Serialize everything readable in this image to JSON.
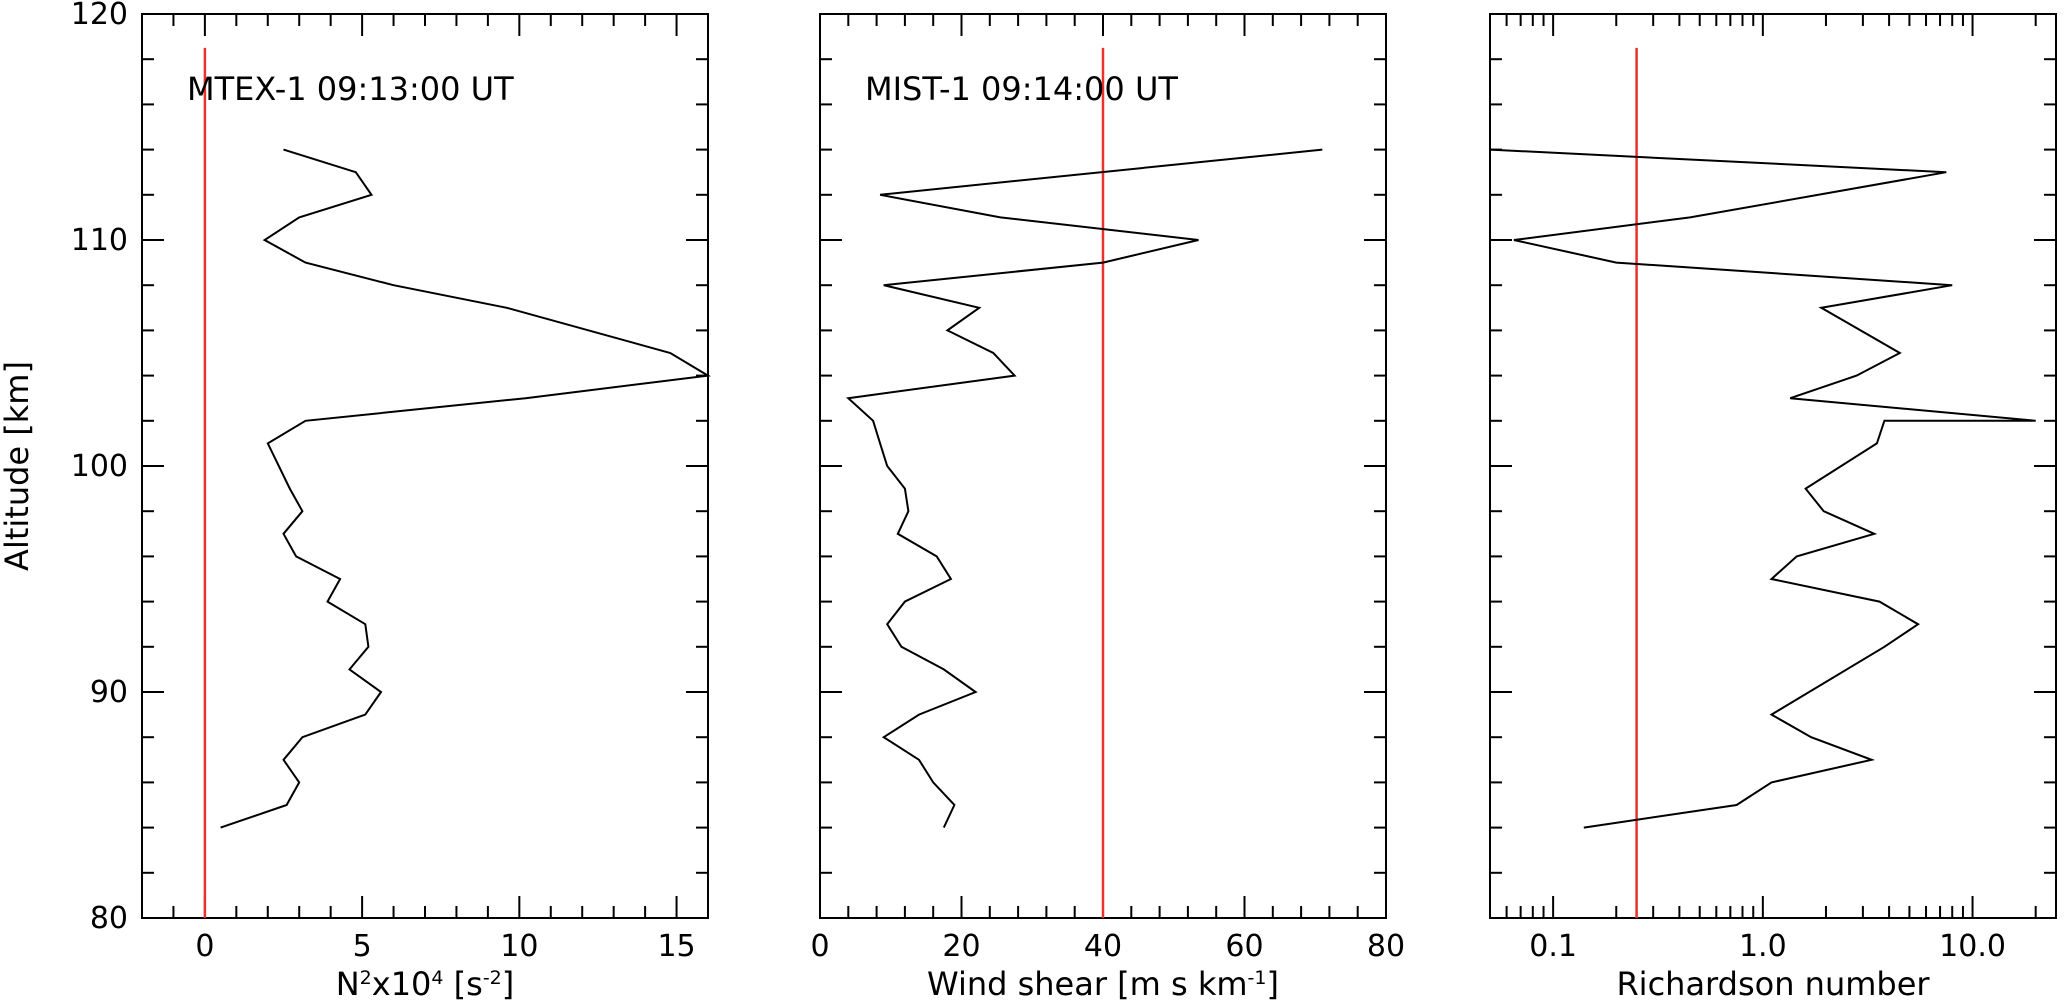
{
  "chart_data": [
    {
      "type": "line",
      "annotation": "MTEX-1 09:13:00 UT",
      "xlabel_parts": [
        "N",
        "2",
        "x10",
        "4",
        " [s",
        "-2",
        "]"
      ],
      "ylabel": "Altitude [km]",
      "xlim": [
        -2,
        16
      ],
      "ylim": [
        80,
        120
      ],
      "x_ticks": [
        0,
        5,
        10,
        15
      ],
      "x_tick_labels": [
        "0",
        "5",
        "10",
        "15"
      ],
      "y_ticks": [
        80,
        90,
        100,
        110,
        120
      ],
      "y_tick_labels": [
        "80",
        "90",
        "100",
        "110",
        "120"
      ],
      "reference_line_x": 0,
      "series": [
        {
          "name": "N2",
          "x": [
            0.5,
            2.6,
            3.0,
            2.5,
            3.1,
            5.1,
            5.6,
            4.6,
            5.2,
            5.1,
            3.9,
            4.3,
            2.9,
            2.5,
            3.1,
            2.7,
            2.0,
            3.2,
            10.2,
            16.0,
            14.8,
            9.6,
            6.0,
            3.2,
            1.9,
            3.0,
            5.3,
            4.8,
            2.5
          ],
          "y": [
            84,
            85,
            86,
            87,
            88,
            89,
            90,
            91,
            92,
            93,
            94,
            95,
            96,
            97,
            98,
            99,
            101,
            102,
            103,
            104,
            105,
            107,
            108,
            109,
            110,
            111,
            112,
            113,
            114
          ]
        }
      ]
    },
    {
      "type": "line",
      "annotation": "MIST-1 09:14:00 UT",
      "xlabel_parts": [
        "Wind shear [m s km",
        "-1",
        "]"
      ],
      "xlim": [
        0,
        80
      ],
      "ylim": [
        80,
        120
      ],
      "x_ticks": [
        0,
        20,
        40,
        60,
        80
      ],
      "x_tick_labels": [
        "0",
        "20",
        "40",
        "60",
        "80"
      ],
      "reference_line_x": 40,
      "series": [
        {
          "name": "Wind shear",
          "x": [
            17.5,
            19.0,
            16.0,
            14.0,
            9.0,
            14.0,
            22.0,
            17.5,
            11.5,
            9.5,
            12.0,
            18.5,
            16.5,
            11.0,
            12.5,
            12.0,
            9.5,
            8.5,
            7.5,
            4.0,
            27.5,
            24.5,
            18.0,
            22.5,
            9.0,
            40.0,
            53.5,
            25.5,
            8.5,
            71.0
          ],
          "y": [
            84,
            85,
            86,
            87,
            88,
            89,
            90,
            91,
            92,
            93,
            94,
            95,
            96,
            97,
            98,
            99,
            100,
            101,
            102,
            103,
            104,
            105,
            106,
            107,
            108,
            109,
            110,
            111,
            112,
            114
          ]
        }
      ]
    },
    {
      "type": "line",
      "xscale": "log",
      "xlabel": "Richardson number",
      "xlim": [
        0.05,
        25
      ],
      "ylim": [
        80,
        120
      ],
      "x_ticks": [
        0.1,
        1.0,
        10.0
      ],
      "x_tick_labels": [
        "0.1",
        "1.0",
        "10.0"
      ],
      "reference_line_x": 0.25,
      "series": [
        {
          "name": "Ri",
          "x": [
            0.14,
            0.75,
            1.1,
            3.3,
            1.7,
            1.1,
            3.8,
            5.5,
            3.6,
            1.1,
            1.45,
            3.4,
            1.95,
            1.6,
            3.5,
            3.8,
            20.0,
            1.35,
            2.8,
            4.5,
            1.9,
            8.0,
            0.2,
            0.065,
            0.45,
            7.5,
            0.05
          ],
          "y": [
            84,
            85,
            86,
            87,
            88,
            89,
            92,
            93,
            94,
            95,
            96,
            97,
            98,
            99,
            101,
            102,
            102,
            103,
            104,
            105,
            107,
            108,
            109,
            110,
            111,
            113,
            114
          ]
        }
      ]
    }
  ],
  "colors": {
    "reference_line": "#e8322a",
    "data_line": "#000000",
    "axes": "#000000"
  }
}
